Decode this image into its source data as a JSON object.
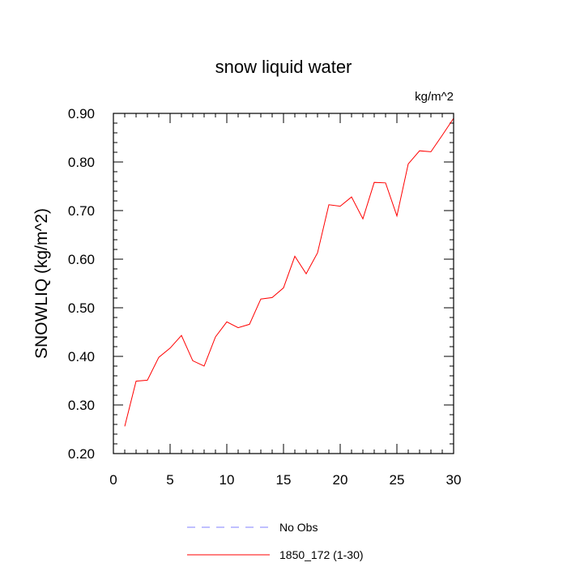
{
  "chart_data": {
    "type": "line",
    "title": "snow liquid water",
    "units_label": "kg/m^2",
    "xlabel": "",
    "ylabel": "SNOWLIQ  (kg/m^2)",
    "xlim": [
      0,
      30
    ],
    "ylim": [
      0.2,
      0.9
    ],
    "x_ticks": [
      0,
      5,
      10,
      15,
      20,
      25,
      30
    ],
    "x_tick_labels": [
      "0",
      "5",
      "10",
      "15",
      "20",
      "25",
      "30"
    ],
    "y_ticks": [
      0.2,
      0.3,
      0.4,
      0.5,
      0.6,
      0.7,
      0.8,
      0.9
    ],
    "y_tick_labels": [
      "0.20",
      "0.30",
      "0.40",
      "0.50",
      "0.60",
      "0.70",
      "0.80",
      "0.90"
    ],
    "grid": false,
    "legend_position": "bottom",
    "series": [
      {
        "name": "1850_172 (1-30)",
        "color": "#ff0000",
        "dash": "solid",
        "x": [
          1,
          2,
          3,
          4,
          5,
          6,
          7,
          8,
          9,
          10,
          11,
          12,
          13,
          14,
          15,
          16,
          17,
          18,
          19,
          20,
          21,
          22,
          23,
          24,
          25,
          26,
          27,
          28,
          29,
          30
        ],
        "values": [
          0.256,
          0.349,
          0.351,
          0.398,
          0.417,
          0.443,
          0.391,
          0.38,
          0.44,
          0.471,
          0.459,
          0.466,
          0.518,
          0.521,
          0.541,
          0.606,
          0.57,
          0.613,
          0.712,
          0.709,
          0.728,
          0.683,
          0.758,
          0.757,
          0.689,
          0.796,
          0.823,
          0.821,
          0.855,
          0.89
        ]
      }
    ],
    "legend": [
      {
        "label": "No Obs",
        "color": "#8080ff",
        "dash": "dashed"
      },
      {
        "label": "1850_172 (1-30)",
        "color": "#ff0000",
        "dash": "solid"
      }
    ]
  }
}
